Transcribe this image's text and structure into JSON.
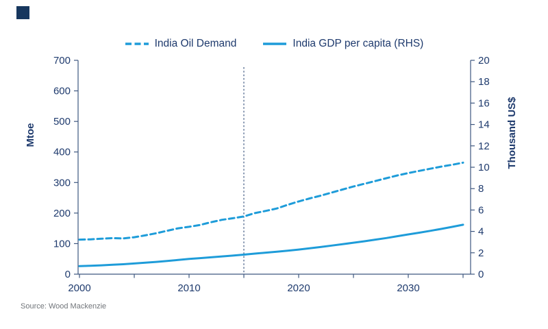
{
  "brand": {
    "square_color": "#17375E"
  },
  "legend": {
    "items": [
      {
        "label": "India Oil Demand",
        "style": "dashed"
      },
      {
        "label": "India GDP per capita (RHS)",
        "style": "solid"
      }
    ]
  },
  "chart_data": {
    "type": "line",
    "title": "",
    "grid": false,
    "legend_position": "top",
    "x_axis": {
      "min": 2000,
      "max": 2035,
      "tick_step": 5,
      "labels": [
        "2000",
        "2010",
        "2020",
        "2030"
      ],
      "label_step": 10
    },
    "left_axis": {
      "title": "Mtoe",
      "min": 0,
      "max": 700,
      "step": 100,
      "tick_labels": [
        "0",
        "100",
        "200",
        "300",
        "400",
        "500",
        "600",
        "700"
      ]
    },
    "right_axis": {
      "title": "Thousand US$",
      "min": 0,
      "max": 20,
      "step": 2,
      "tick_labels": [
        "0",
        "2",
        "4",
        "6",
        "8",
        "10",
        "12",
        "14",
        "16",
        "18",
        "20"
      ]
    },
    "vline_year": 2015,
    "series": [
      {
        "name": "India Oil Demand",
        "axis": "left",
        "line_style": "dashed",
        "color": "#1E9CD9",
        "x": [
          2000,
          2001,
          2002,
          2003,
          2004,
          2005,
          2006,
          2007,
          2008,
          2009,
          2010,
          2011,
          2012,
          2013,
          2014,
          2015,
          2016,
          2017,
          2018,
          2019,
          2020,
          2021,
          2022,
          2023,
          2024,
          2025,
          2026,
          2027,
          2028,
          2029,
          2030,
          2031,
          2032,
          2033,
          2034,
          2035
        ],
        "values": [
          113,
          114,
          116,
          118,
          117,
          121,
          127,
          134,
          142,
          150,
          155,
          161,
          170,
          178,
          183,
          189,
          200,
          207,
          215,
          227,
          238,
          248,
          257,
          267,
          277,
          287,
          296,
          305,
          314,
          323,
          331,
          338,
          345,
          352,
          358,
          365
        ]
      },
      {
        "name": "India GDP per capita (RHS)",
        "axis": "right",
        "line_style": "solid",
        "color": "#1E9CD9",
        "x": [
          2000,
          2001,
          2002,
          2003,
          2004,
          2005,
          2006,
          2007,
          2008,
          2009,
          2010,
          2011,
          2012,
          2013,
          2014,
          2015,
          2016,
          2017,
          2018,
          2019,
          2020,
          2021,
          2022,
          2023,
          2024,
          2025,
          2026,
          2027,
          2028,
          2029,
          2030,
          2031,
          2032,
          2033,
          2034,
          2035
        ],
        "values": [
          0.75,
          0.79,
          0.83,
          0.88,
          0.93,
          1.0,
          1.07,
          1.15,
          1.24,
          1.33,
          1.43,
          1.5,
          1.58,
          1.66,
          1.74,
          1.83,
          1.92,
          2.01,
          2.1,
          2.2,
          2.3,
          2.42,
          2.54,
          2.67,
          2.8,
          2.94,
          3.08,
          3.23,
          3.38,
          3.55,
          3.72,
          3.88,
          4.05,
          4.23,
          4.42,
          4.62
        ]
      }
    ]
  },
  "source": {
    "text": "Source: Wood Mackenzie"
  },
  "colors": {
    "line_blue": "#1E9CD9",
    "navy_text": "#1E3A6D",
    "axis_line": "#3D567F",
    "vline": "#2E4A77",
    "source_gray": "#71757A"
  }
}
